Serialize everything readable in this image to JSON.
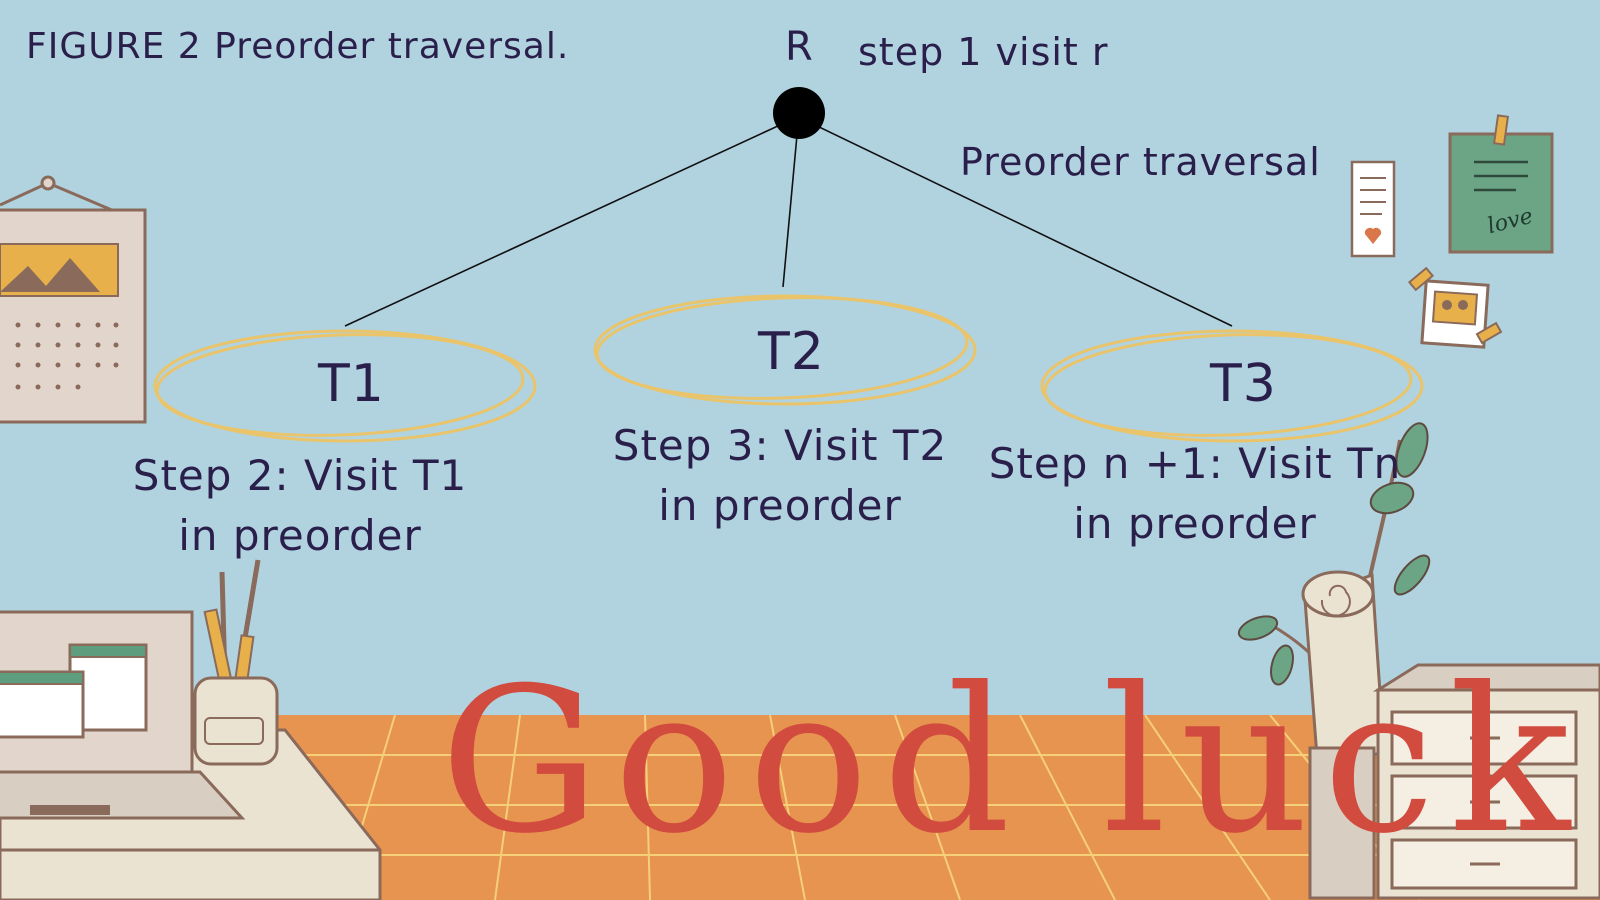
{
  "caption": "FIGURE 2 Preorder traversal.",
  "diagram": {
    "root_label": "R",
    "step1": "step 1 visit r",
    "title_right": "Preorder traversal",
    "subtrees": [
      {
        "label": "T1",
        "step_line1": "Step 2: Visit T1",
        "step_line2": "in preorder"
      },
      {
        "label": "T2",
        "step_line1": "Step 3: Visit T2",
        "step_line2": "in preorder"
      },
      {
        "label": "T3",
        "step_line1": "Step n +1: Visit Tn",
        "step_line2": "in preorder"
      }
    ]
  },
  "footer": {
    "text": "Good luck"
  },
  "decor": {
    "note_text": "love",
    "icons": [
      "calendar-icon",
      "laptop-icon",
      "pencil-cup-icon",
      "desk-icon",
      "plant-icon",
      "paper-roll-icon",
      "drawer-cabinet-icon",
      "sticky-note-icon",
      "photo-icon",
      "memo-icon"
    ]
  },
  "colors": {
    "background": "#b1d3e0",
    "floor": "#e6944f",
    "circle": "#e9c46a",
    "title": "#d24b3f",
    "text": "#2a1f4a"
  }
}
